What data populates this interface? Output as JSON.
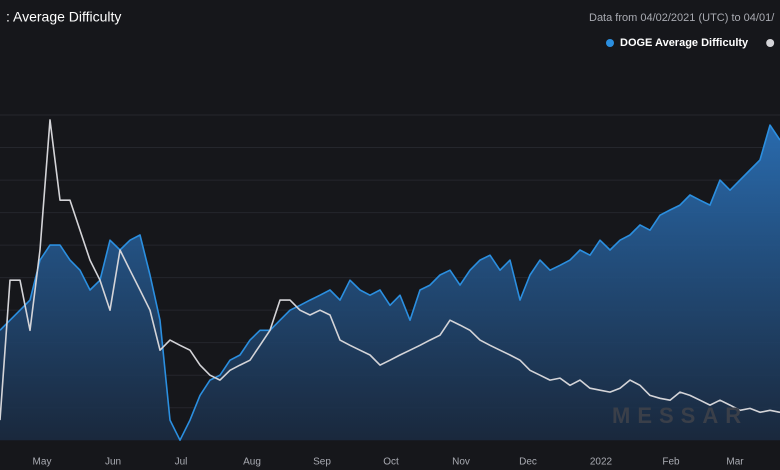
{
  "chart_data": {
    "type": "area-line",
    "title": ": Average Difficulty",
    "subtitle": "Data from 04/02/2021 (UTC) to 04/01/",
    "watermark": "MESSAR",
    "xlim": [
      0,
      78
    ],
    "xticks": [
      {
        "value": 4.2,
        "label": "May"
      },
      {
        "value": 11.3,
        "label": "Jun"
      },
      {
        "value": 18.1,
        "label": "Jul"
      },
      {
        "value": 25.2,
        "label": "Aug"
      },
      {
        "value": 32.2,
        "label": "Sep"
      },
      {
        "value": 39.1,
        "label": "Oct"
      },
      {
        "value": 46.1,
        "label": "Nov"
      },
      {
        "value": 52.8,
        "label": "Dec"
      },
      {
        "value": 60.1,
        "label": "2022"
      },
      {
        "value": 67.1,
        "label": "Feb"
      },
      {
        "value": 73.5,
        "label": "Mar"
      }
    ],
    "ylim": [
      -3,
      112
    ],
    "yticks": [
      10,
      20,
      30,
      40,
      50,
      60,
      70,
      80,
      90,
      100
    ],
    "grid": true,
    "series": [
      {
        "name": "DOGE Average Difficulty",
        "color": "#2b8fe0",
        "fill": true,
        "values": [
          33.8,
          36.9,
          40,
          43.1,
          55.4,
          60,
          60,
          55.4,
          52.3,
          46.2,
          49.2,
          61.5,
          58.5,
          61.5,
          63.1,
          50.8,
          36.9,
          6.2,
          0,
          6.2,
          13.8,
          18.5,
          20,
          24.6,
          26.2,
          30.8,
          33.8,
          33.8,
          36.9,
          40,
          41.5,
          43.1,
          44.6,
          46.2,
          43.1,
          49.2,
          46.2,
          44.6,
          46.2,
          41.5,
          44.6,
          36.9,
          46.2,
          47.7,
          50.8,
          52.3,
          47.7,
          52.3,
          55.4,
          56.9,
          52.3,
          55.4,
          43.1,
          50.8,
          55.4,
          52.3,
          53.8,
          55.4,
          58.5,
          56.9,
          61.5,
          58.5,
          61.5,
          63.1,
          66.2,
          64.6,
          69.2,
          70.8,
          72.3,
          75.4,
          73.8,
          72.3,
          80,
          76.9,
          80,
          83.1,
          86.2,
          96.9,
          92.3
        ]
      },
      {
        "color": "#d4d4d8",
        "fill": false,
        "values": [
          6.2,
          49.2,
          49.2,
          33.8,
          58.5,
          98.5,
          73.8,
          73.8,
          64.6,
          55.4,
          49.2,
          40,
          58.5,
          52.3,
          46.2,
          40,
          27.7,
          30.8,
          29.2,
          27.7,
          23.1,
          20,
          18.5,
          21.5,
          23.1,
          24.6,
          29.2,
          33.8,
          43.1,
          43.1,
          40,
          38.5,
          40,
          38.5,
          30.8,
          29.2,
          27.7,
          26.2,
          23.1,
          24.6,
          26.2,
          27.7,
          29.2,
          30.8,
          32.3,
          36.9,
          35.4,
          33.8,
          30.8,
          29.2,
          27.7,
          26.2,
          24.6,
          21.5,
          20,
          18.5,
          19.1,
          16.9,
          18.5,
          16,
          15.4,
          14.8,
          16,
          18.5,
          16.9,
          13.8,
          12.9,
          12.3,
          14.8,
          13.8,
          12.3,
          10.8,
          12.3,
          10.8,
          9.2,
          9.8,
          8.6,
          9.2,
          8.6
        ]
      }
    ]
  }
}
